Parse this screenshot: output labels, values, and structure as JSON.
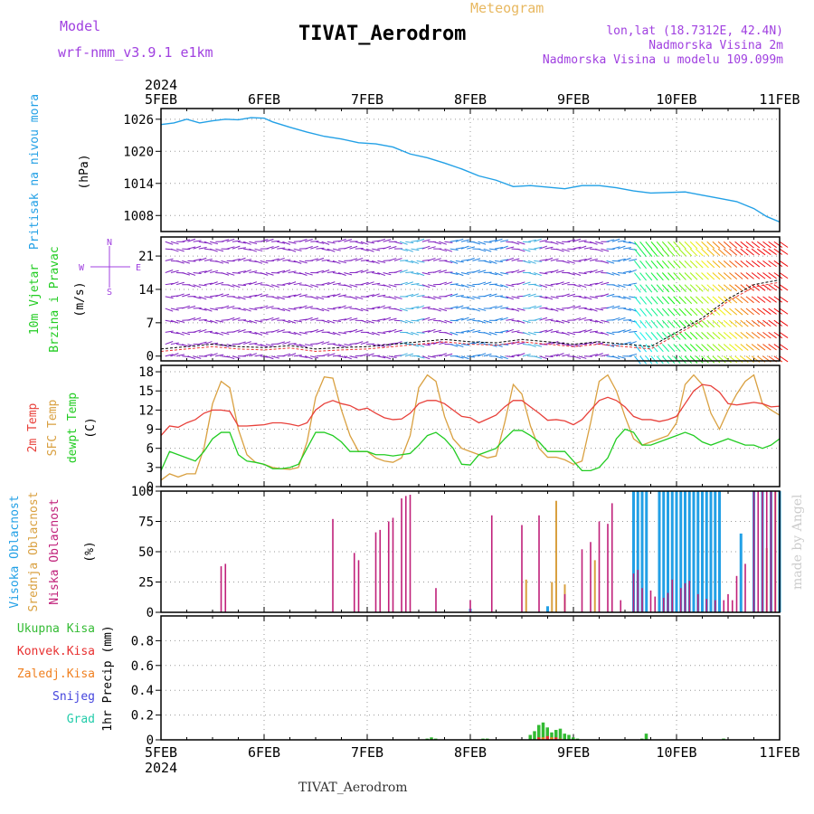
{
  "header": {
    "title": "TIVAT_Aerodrom",
    "subtitle": "Meteogram",
    "model_label": "Model",
    "model_name": "wrf-nmm_v3.9.1 e1km",
    "lonlat": "lon,lat (18.7312E, 42.4N)",
    "elevation": "Nadmorska Visina 2m",
    "model_elevation": "Nadmorska Visina u modelu 109.099m",
    "year_top": "2024",
    "year_bottom": "2024",
    "footer": "TIVAT_Aerodrom",
    "credit": "made by Angel"
  },
  "colors": {
    "pressure": "#22a0e6",
    "temp2m": "#e8403a",
    "sfc": "#d9a040",
    "dewpt": "#22cc22",
    "high": "#22a0e6",
    "mid": "#d9a040",
    "low": "#c0207a",
    "precip_total": "#33bb33",
    "precip_conv": "#e83030",
    "precip_frz": "#f08020",
    "precip_snow": "#4444dd",
    "precip_graupel": "#22ccaa",
    "wind_label": "#22cc22",
    "wind_dir": "#a040e0",
    "left_pressure": "#22a0e6"
  },
  "x_axis": {
    "ticks": [
      "5FEB",
      "6FEB",
      "7FEB",
      "8FEB",
      "9FEB",
      "10FEB",
      "11FEB"
    ],
    "start": 0,
    "end": 144
  },
  "panels": {
    "pressure": {
      "labels": [
        "Pritisak na nivou mora"
      ],
      "unit": "(hPa)",
      "yticks": [
        "1008",
        "1014",
        "1020",
        "1026"
      ]
    },
    "wind": {
      "labels": [
        "10m Vjetar",
        "Brzina i Pravac"
      ],
      "unit": "(m/s)",
      "yticks": [
        "0",
        "7",
        "14",
        "21"
      ],
      "compass": {
        "n": "N",
        "s": "S",
        "e": "E",
        "w": "W"
      }
    },
    "temp": {
      "labels": [
        "2m Temp",
        "SFC Temp",
        "dewpt Temp"
      ],
      "unit": "(C)",
      "yticks": [
        "0",
        "3",
        "6",
        "9",
        "12",
        "15",
        "18"
      ]
    },
    "cloud": {
      "labels": [
        "Visoka Oblacnost",
        "Srednja Oblacnost",
        "Niska Oblacnost"
      ],
      "unit": "(%)",
      "yticks": [
        "0",
        "25",
        "50",
        "75",
        "100"
      ]
    },
    "precip": {
      "labels": [
        "Ukupna Kisa",
        "Konvek.Kisa",
        "Zaledj.Kisa",
        "Snijeg",
        "Grad"
      ],
      "unit": "1hr Precip (mm)",
      "yticks": [
        "0",
        "0.2",
        "0.4",
        "0.6",
        "0.8"
      ]
    }
  },
  "chart_data": [
    {
      "type": "line",
      "name": "Sea level pressure",
      "ylim": [
        1005,
        1028
      ],
      "x": [
        0,
        3,
        6,
        9,
        12,
        15,
        18,
        21,
        24,
        26,
        30,
        34,
        38,
        42,
        46,
        50,
        54,
        58,
        62,
        66,
        70,
        74,
        78,
        82,
        86,
        90,
        94,
        98,
        102,
        106,
        110,
        114,
        118,
        122,
        126,
        130,
        134,
        138,
        141,
        144
      ],
      "series": [
        {
          "values": [
            1025,
            1025.3,
            1026,
            1025.3,
            1025.7,
            1026,
            1025.9,
            1026.3,
            1026.2,
            1025.5,
            1024.5,
            1023.6,
            1022.8,
            1022.3,
            1021.6,
            1021.4,
            1020.8,
            1019.5,
            1018.8,
            1017.8,
            1016.7,
            1015.4,
            1014.6,
            1013.4,
            1013.6,
            1013.3,
            1013,
            1013.6,
            1013.6,
            1013.2,
            1012.6,
            1012.2,
            1012.3,
            1012.4,
            1011.8,
            1011.2,
            1010.6,
            1009.3,
            1007.8,
            1006.8
          ]
        }
      ]
    },
    {
      "type": "line",
      "name": "10m wind",
      "ylim": [
        -1,
        25
      ],
      "x": [
        0,
        6,
        12,
        18,
        24,
        30,
        36,
        42,
        48,
        54,
        60,
        66,
        72,
        78,
        84,
        90,
        96,
        102,
        108,
        114,
        120,
        126,
        132,
        138,
        144
      ],
      "series": [
        {
          "values": [
            1.5,
            2,
            2.5,
            2,
            1.8,
            2.2,
            1.5,
            1.8,
            2,
            2.5,
            3,
            3.5,
            3,
            2.8,
            3.5,
            3,
            2.5,
            3,
            2.5,
            2,
            5,
            8,
            12,
            15,
            16
          ]
        }
      ]
    },
    {
      "type": "line",
      "name": "Temperatures",
      "ylim": [
        0,
        19
      ],
      "x": [
        0,
        2,
        4,
        6,
        8,
        10,
        12,
        14,
        16,
        18,
        20,
        22,
        24,
        26,
        28,
        30,
        32,
        34,
        36,
        38,
        40,
        42,
        44,
        46,
        48,
        50,
        52,
        54,
        56,
        58,
        60,
        62,
        64,
        66,
        68,
        70,
        72,
        74,
        76,
        78,
        80,
        82,
        84,
        86,
        88,
        90,
        92,
        94,
        96,
        98,
        100,
        102,
        104,
        106,
        108,
        110,
        112,
        114,
        116,
        118,
        120,
        122,
        124,
        126,
        128,
        130,
        132,
        134,
        136,
        138,
        140,
        142,
        144
      ],
      "series": [
        {
          "values": [
            8,
            9.5,
            9.3,
            10,
            10.5,
            11.5,
            12,
            12,
            11.8,
            9.5,
            9.5,
            9.6,
            9.7,
            10,
            10,
            9.8,
            9.5,
            10,
            12,
            13,
            13.5,
            13,
            12.7,
            12,
            12.3,
            11.5,
            10.8,
            10.5,
            10.6,
            11.5,
            13,
            13.5,
            13.5,
            13,
            12,
            11,
            10.8,
            10,
            10.6,
            11.2,
            12.5,
            13.5,
            13.5,
            12.5,
            11.5,
            10.4,
            10.5,
            10.3,
            9.7,
            10.5,
            12,
            13.5,
            14,
            13.5,
            12.5,
            11,
            10.5,
            10.5,
            10.2,
            10.5,
            11,
            13,
            15,
            16,
            15.8,
            14.8,
            13,
            12.8,
            13,
            13.2,
            13,
            12.5,
            12.6
          ]
        },
        {
          "values": [
            1,
            2,
            1.5,
            2,
            2,
            6,
            13,
            16.5,
            15.5,
            9,
            5,
            3.8,
            3.5,
            3,
            2.8,
            2.7,
            3,
            7,
            14,
            17.2,
            17,
            12,
            8,
            5.5,
            5.5,
            4.5,
            4,
            3.8,
            4.5,
            8,
            15.5,
            17.5,
            16.5,
            11,
            7.5,
            6,
            5.5,
            5,
            4.5,
            4.8,
            10,
            16,
            14.5,
            9.5,
            6,
            4.6,
            4.6,
            4.2,
            3.5,
            4,
            10,
            16.5,
            17.5,
            15,
            11,
            7.5,
            6.5,
            7,
            7.5,
            8,
            10,
            16,
            17.5,
            16,
            11.5,
            9,
            12,
            14.5,
            16.5,
            17.5,
            13,
            12,
            11.2
          ]
        },
        {
          "values": [
            2.5,
            5.5,
            5,
            4.5,
            4,
            5.5,
            7.5,
            8.5,
            8.5,
            5,
            4,
            3.8,
            3.5,
            2.8,
            2.8,
            3,
            3.5,
            6,
            8.5,
            8.5,
            8,
            7,
            5.5,
            5.5,
            5.5,
            5,
            5,
            4.8,
            5,
            5.2,
            6.5,
            8,
            8.5,
            7.5,
            6,
            3.5,
            3.4,
            5,
            5.5,
            6,
            7.5,
            8.8,
            8.8,
            8,
            7,
            5.5,
            5.5,
            5.5,
            4,
            2.5,
            2.5,
            3,
            4.5,
            7.5,
            9,
            8.5,
            6.5,
            6.5,
            7,
            7.5,
            8,
            8.5,
            8,
            7,
            6.5,
            7,
            7.5,
            7,
            6.5,
            6.5,
            6,
            6.5,
            7.5
          ]
        }
      ]
    },
    {
      "type": "bar",
      "name": "Cloud cover",
      "ylim": [
        0,
        100
      ],
      "series": [
        {
          "x": [
            72,
            90,
            110,
            111,
            112,
            113,
            116,
            117,
            118,
            119,
            120,
            121,
            122,
            123,
            124,
            125,
            126,
            127,
            128,
            129,
            130,
            135,
            138,
            140,
            142,
            144
          ],
          "values": [
            3,
            5,
            100,
            100,
            100,
            100,
            100,
            100,
            100,
            100,
            100,
            100,
            100,
            100,
            100,
            100,
            100,
            100,
            100,
            100,
            100,
            65,
            100,
            100,
            100,
            100
          ]
        },
        {
          "x": [
            85,
            91,
            92,
            94,
            101,
            141,
            143
          ],
          "values": [
            27,
            25,
            92,
            23,
            43,
            53,
            100
          ]
        },
        {
          "x": [
            14,
            15,
            40,
            45,
            46,
            50,
            51,
            53,
            54,
            56,
            57,
            58,
            64,
            72,
            77,
            84,
            88,
            94,
            98,
            100,
            102,
            104,
            105,
            107,
            110,
            111,
            112,
            114,
            115,
            117,
            118,
            119,
            121,
            122,
            123,
            125,
            127,
            129,
            131,
            132,
            133,
            134,
            136,
            138,
            139,
            140,
            141,
            142,
            143
          ],
          "values": [
            38,
            40,
            77,
            49,
            43,
            66,
            68,
            75,
            78,
            94,
            96,
            97,
            20,
            10,
            80,
            72,
            80,
            15,
            52,
            58,
            75,
            73,
            90,
            10,
            32,
            35,
            20,
            18,
            13,
            12,
            16,
            27,
            20,
            24,
            26,
            15,
            11,
            10,
            10,
            15,
            10,
            30,
            40,
            100,
            100,
            100,
            100,
            100,
            100
          ]
        }
      ]
    },
    {
      "type": "bar",
      "name": "1hr precipitation",
      "ylim": [
        0,
        1
      ],
      "series": [
        {
          "x": [
            62,
            63,
            64,
            75,
            76,
            86,
            87,
            88,
            89,
            90,
            91,
            92,
            93,
            94,
            95,
            96,
            97,
            112,
            113,
            131
          ],
          "values": [
            0.01,
            0.02,
            0.01,
            0.01,
            0.01,
            0.04,
            0.07,
            0.12,
            0.14,
            0.1,
            0.06,
            0.08,
            0.09,
            0.05,
            0.04,
            0.02,
            0.01,
            0.01,
            0.05,
            0.01
          ]
        },
        {
          "x": [
            88,
            90,
            92
          ],
          "values": [
            0.02,
            0.03,
            0.02
          ]
        },
        {
          "x": [
            89,
            91,
            93
          ],
          "values": [
            0.02,
            0.02,
            0.01
          ]
        },
        {
          "x": [],
          "values": []
        },
        {
          "x": [],
          "values": []
        }
      ]
    }
  ]
}
